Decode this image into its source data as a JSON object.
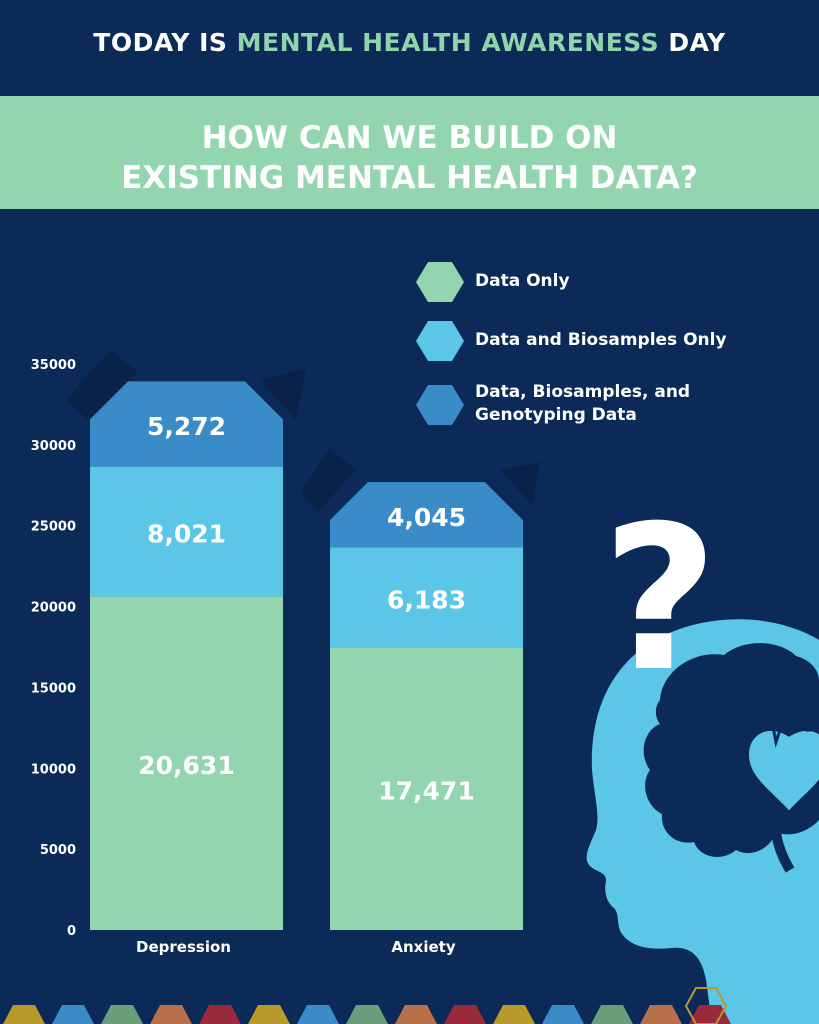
{
  "header": {
    "prefix": "TODAY IS ",
    "highlight": "MENTAL HEALTH AWARENESS",
    "suffix": " DAY"
  },
  "banner": {
    "line1": "HOW CAN WE BUILD ON",
    "line2": "EXISTING MENTAL HEALTH DATA?"
  },
  "colors": {
    "background": "#0b2a57",
    "data_only": "#93d5ae",
    "data_biosamples": "#5bc6e8",
    "data_bio_geno": "#3a8cc8",
    "head": "#5bc6e8"
  },
  "chart_data": {
    "type": "bar",
    "stacked": true,
    "categories": [
      "Depression",
      "Anxiety"
    ],
    "series": [
      {
        "name": "Data Only",
        "values": [
          20631,
          17471
        ],
        "labels": [
          "20,631",
          "17,471"
        ]
      },
      {
        "name": "Data and Biosamples Only",
        "values": [
          8021,
          6183
        ],
        "labels": [
          "8,021",
          "6,183"
        ]
      },
      {
        "name": "Data, Biosamples, and Genotyping Data",
        "values": [
          5272,
          4045
        ],
        "labels": [
          "5,272",
          "4,045"
        ]
      }
    ],
    "y_ticks": [
      "0",
      "5000",
      "10000",
      "15000",
      "20000",
      "25000",
      "30000",
      "35000"
    ],
    "ylim": [
      0,
      35000
    ],
    "legend_position": "top-right",
    "legend_lines": [
      [
        "Data Only"
      ],
      [
        "Data and Biosamples Only"
      ],
      [
        "Data, Biosamples, and",
        "Genotyping Data"
      ]
    ],
    "grid": false
  },
  "decorations": {
    "question_mark": "?",
    "head_icon": "head-silhouette-icon",
    "brain_icon": "brain-icon",
    "heart_icon": "heartbeat-heart-icon",
    "hexagon_colors": [
      "#b89a2a",
      "#3a8cc8",
      "#6a9e7a",
      "#b8704a",
      "#9a2a3a",
      "#b89a2a",
      "#3a8cc8",
      "#6a9e7a",
      "#b8704a",
      "#9a2a3a",
      "#b89a2a",
      "#3a8cc8",
      "#6a9e7a",
      "#b8704a",
      "#9a2a3a"
    ]
  }
}
